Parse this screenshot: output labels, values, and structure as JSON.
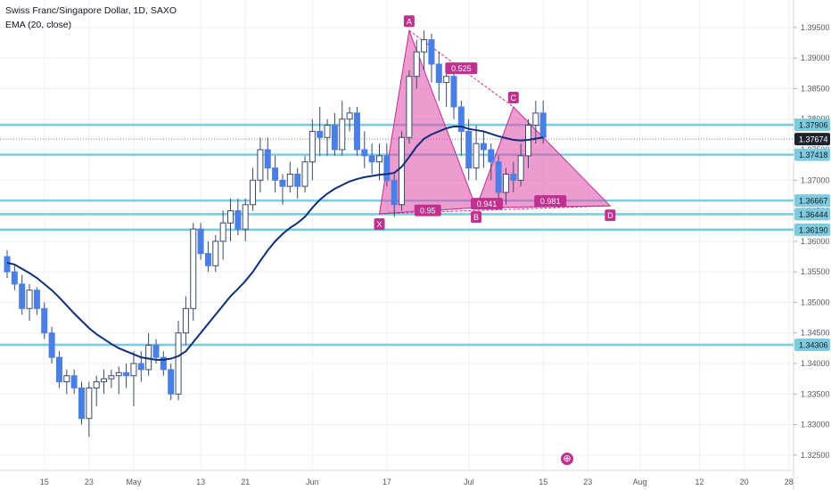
{
  "header": {
    "title": "Swiss Franc/Singapore Dollar, 1D, SAXO",
    "indicator": "EMA (20, close)"
  },
  "colors": {
    "bull": "#4a7fe6",
    "bear": "#4a7fe6",
    "ema": "#0e2f78",
    "hline": "#7ecbe0",
    "pattern_fill": "#e04ba8",
    "pattern_line": "#c0308f",
    "grid": "#eef0f3",
    "axis_text": "#555a66",
    "label_bg": "#1e222d"
  },
  "chart_data": {
    "type": "candlestick",
    "title": "Swiss Franc/Singapore Dollar, 1D, SAXO",
    "ylim": [
      1.3225,
      1.3995
    ],
    "price_ticks": [
      "1.32500",
      "1.33000",
      "1.33500",
      "1.34000",
      "1.34500",
      "1.35000",
      "1.35500",
      "1.36000",
      "1.36500",
      "1.37000",
      "1.37500",
      "1.38000",
      "1.38500",
      "1.39000",
      "1.39500"
    ],
    "x_ticks": [
      {
        "label": "15",
        "bar": 5
      },
      {
        "label": "23",
        "bar": 11
      },
      {
        "label": "May",
        "bar": 17
      },
      {
        "label": "13",
        "bar": 26
      },
      {
        "label": "21",
        "bar": 32
      },
      {
        "label": "Jun",
        "bar": 41
      },
      {
        "label": "17",
        "bar": 51
      },
      {
        "label": "Jul",
        "bar": 62
      },
      {
        "label": "15",
        "bar": 72
      },
      {
        "label": "23",
        "bar": 78
      },
      {
        "label": "Aug",
        "bar": 85
      },
      {
        "label": "12",
        "bar": 93
      },
      {
        "label": "20",
        "bar": 99
      },
      {
        "label": "28",
        "bar": 105
      }
    ],
    "candles": [
      [
        1.3575,
        1.3585,
        1.354,
        1.355
      ],
      [
        1.355,
        1.356,
        1.352,
        1.353
      ],
      [
        1.353,
        1.3545,
        1.348,
        1.349
      ],
      [
        1.349,
        1.353,
        1.347,
        1.352
      ],
      [
        1.352,
        1.3525,
        1.348,
        1.349
      ],
      [
        1.349,
        1.35,
        1.344,
        1.345
      ],
      [
        1.345,
        1.346,
        1.34,
        1.341
      ],
      [
        1.341,
        1.342,
        1.336,
        1.337
      ],
      [
        1.337,
        1.339,
        1.335,
        1.338
      ],
      [
        1.338,
        1.339,
        1.335,
        1.336
      ],
      [
        1.336,
        1.337,
        1.33,
        1.331
      ],
      [
        1.331,
        1.337,
        1.328,
        1.336
      ],
      [
        1.336,
        1.338,
        1.333,
        1.337
      ],
      [
        1.337,
        1.339,
        1.335,
        1.3375
      ],
      [
        1.3375,
        1.339,
        1.336,
        1.338
      ],
      [
        1.338,
        1.3395,
        1.335,
        1.3385
      ],
      [
        1.3385,
        1.34,
        1.336,
        1.338
      ],
      [
        1.338,
        1.342,
        1.333,
        1.34
      ],
      [
        1.34,
        1.342,
        1.337,
        1.339
      ],
      [
        1.339,
        1.345,
        1.338,
        1.343
      ],
      [
        1.343,
        1.344,
        1.34,
        1.341
      ],
      [
        1.341,
        1.342,
        1.338,
        1.339
      ],
      [
        1.339,
        1.34,
        1.334,
        1.335
      ],
      [
        1.335,
        1.347,
        1.334,
        1.345
      ],
      [
        1.345,
        1.351,
        1.343,
        1.349
      ],
      [
        1.349,
        1.363,
        1.347,
        1.362
      ],
      [
        1.362,
        1.363,
        1.357,
        1.358
      ],
      [
        1.358,
        1.36,
        1.355,
        1.356
      ],
      [
        1.356,
        1.361,
        1.355,
        1.36
      ],
      [
        1.36,
        1.365,
        1.357,
        1.363
      ],
      [
        1.363,
        1.367,
        1.36,
        1.365
      ],
      [
        1.365,
        1.367,
        1.361,
        1.362
      ],
      [
        1.362,
        1.367,
        1.36,
        1.366
      ],
      [
        1.366,
        1.372,
        1.365,
        1.37
      ],
      [
        1.37,
        1.377,
        1.368,
        1.375
      ],
      [
        1.375,
        1.377,
        1.37,
        1.372
      ],
      [
        1.372,
        1.374,
        1.368,
        1.37
      ],
      [
        1.37,
        1.371,
        1.366,
        1.369
      ],
      [
        1.369,
        1.373,
        1.368,
        1.371
      ],
      [
        1.371,
        1.372,
        1.367,
        1.369
      ],
      [
        1.369,
        1.374,
        1.368,
        1.373
      ],
      [
        1.373,
        1.38,
        1.37,
        1.378
      ],
      [
        1.378,
        1.382,
        1.374,
        1.377
      ],
      [
        1.377,
        1.38,
        1.374,
        1.379
      ],
      [
        1.379,
        1.381,
        1.374,
        1.375
      ],
      [
        1.375,
        1.383,
        1.374,
        1.38
      ],
      [
        1.38,
        1.382,
        1.378,
        1.381
      ],
      [
        1.381,
        1.382,
        1.374,
        1.375
      ],
      [
        1.375,
        1.378,
        1.372,
        1.374
      ],
      [
        1.374,
        1.376,
        1.371,
        1.373
      ],
      [
        1.373,
        1.376,
        1.37,
        1.374
      ],
      [
        1.374,
        1.376,
        1.369,
        1.37
      ],
      [
        1.37,
        1.371,
        1.364,
        1.366
      ],
      [
        1.366,
        1.378,
        1.365,
        1.377
      ],
      [
        1.377,
        1.388,
        1.376,
        1.387
      ],
      [
        1.387,
        1.393,
        1.385,
        1.391
      ],
      [
        1.391,
        1.3945,
        1.388,
        1.393
      ],
      [
        1.393,
        1.394,
        1.386,
        1.389
      ],
      [
        1.389,
        1.391,
        1.383,
        1.386
      ],
      [
        1.386,
        1.388,
        1.382,
        1.387
      ],
      [
        1.387,
        1.388,
        1.38,
        1.382
      ],
      [
        1.382,
        1.383,
        1.374,
        1.378
      ],
      [
        1.378,
        1.38,
        1.37,
        1.372
      ],
      [
        1.372,
        1.379,
        1.37,
        1.376
      ],
      [
        1.376,
        1.378,
        1.372,
        1.375
      ],
      [
        1.375,
        1.376,
        1.37,
        1.373
      ],
      [
        1.373,
        1.374,
        1.367,
        1.368
      ],
      [
        1.368,
        1.372,
        1.366,
        1.371
      ],
      [
        1.371,
        1.373,
        1.368,
        1.37
      ],
      [
        1.37,
        1.376,
        1.369,
        1.374
      ],
      [
        1.374,
        1.38,
        1.372,
        1.379
      ],
      [
        1.379,
        1.383,
        1.376,
        1.381
      ],
      [
        1.381,
        1.383,
        1.376,
        1.377
      ]
    ],
    "ema": [
      1.3565,
      1.3562,
      1.3555,
      1.3548,
      1.354,
      1.353,
      1.352,
      1.3508,
      1.3495,
      1.3482,
      1.347,
      1.3458,
      1.3448,
      1.344,
      1.3432,
      1.3425,
      1.342,
      1.3415,
      1.341,
      1.3408,
      1.3406,
      1.3406,
      1.3408,
      1.3412,
      1.342,
      1.3435,
      1.345,
      1.3465,
      1.348,
      1.3495,
      1.351,
      1.3522,
      1.3535,
      1.355,
      1.3568,
      1.3585,
      1.36,
      1.3612,
      1.3622,
      1.363,
      1.364,
      1.3655,
      1.3668,
      1.3678,
      1.3686,
      1.3692,
      1.3698,
      1.3702,
      1.3705,
      1.3707,
      1.3709,
      1.371,
      1.3712,
      1.3722,
      1.3738,
      1.3755,
      1.3768,
      1.3775,
      1.378,
      1.3785,
      1.3788,
      1.3788,
      1.3784,
      1.3782,
      1.378,
      1.3776,
      1.3772,
      1.3769,
      1.3766,
      1.3765,
      1.3766,
      1.3768,
      1.377
    ],
    "horizontal_levels": [
      1.37906,
      1.37674,
      1.37418,
      1.36667,
      1.36444,
      1.3619,
      1.34306
    ],
    "price_labels": [
      {
        "text": "1.37906",
        "value": 1.37906
      },
      {
        "text": "1.37674",
        "value": 1.37674
      },
      {
        "text": "1.37418",
        "value": 1.37418
      },
      {
        "text": "1.36667",
        "value": 1.36667
      },
      {
        "text": "1.36444",
        "value": 1.36444
      },
      {
        "text": "1.36190",
        "value": 1.3619
      },
      {
        "text": "1.34306",
        "value": 1.34306
      }
    ],
    "harmonic_pattern": {
      "points": [
        {
          "name": "X",
          "bar": 50,
          "value": 1.3645
        },
        {
          "name": "A",
          "bar": 54,
          "value": 1.3945
        },
        {
          "name": "B",
          "bar": 63,
          "value": 1.3655
        },
        {
          "name": "C",
          "bar": 68,
          "value": 1.382
        },
        {
          "name": "D",
          "bar": 81,
          "value": 1.3658
        }
      ],
      "ratios": [
        {
          "text": "0.525",
          "value": 0.525
        },
        {
          "text": "0.95",
          "value": 0.95
        },
        {
          "text": "0.941",
          "value": 0.941
        },
        {
          "text": "0.981",
          "value": 0.981
        }
      ]
    }
  }
}
